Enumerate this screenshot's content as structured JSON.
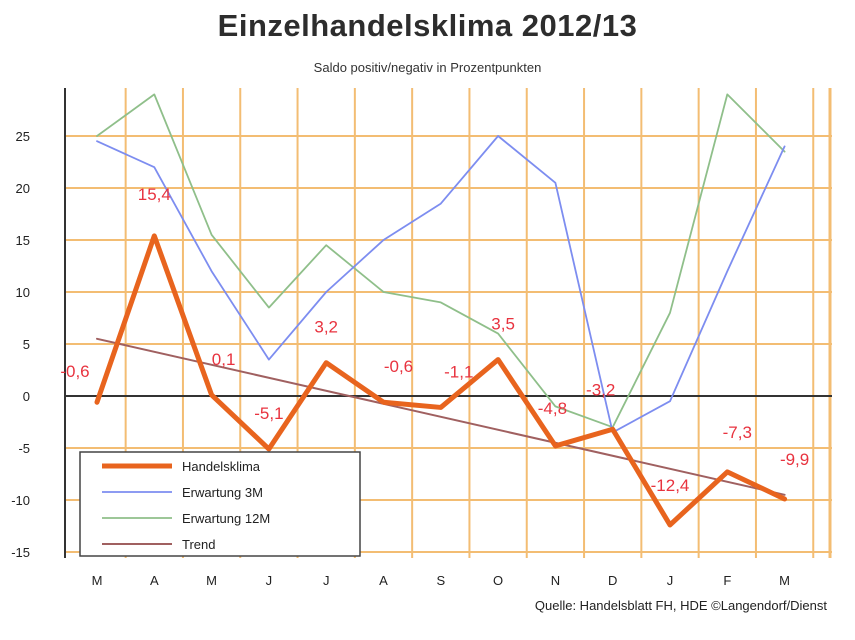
{
  "chart_data": {
    "type": "line",
    "title": "Einzelhandelsklima 2012/13",
    "subtitle": "Saldo positiv/negativ in Prozentpunkten",
    "source": "Quelle: Handelsblatt FH, HDE ©Langendorf/Dienst",
    "categories": [
      "M",
      "A",
      "M",
      "J",
      "J",
      "A",
      "S",
      "O",
      "N",
      "D",
      "J",
      "F",
      "M"
    ],
    "y_ticks": [
      25,
      20,
      15,
      10,
      5,
      0,
      -5,
      -10,
      -15
    ],
    "ylim": [
      -16,
      30
    ],
    "grid": true,
    "legend_position": "bottom-left",
    "series": [
      {
        "name": "Handelsklima",
        "color": "#e8641e",
        "values": [
          -0.6,
          15.4,
          0.1,
          -5.1,
          3.2,
          -0.6,
          -1.1,
          3.5,
          -4.8,
          -3.2,
          -12.4,
          -7.3,
          -9.9
        ],
        "labels": [
          "-0,6",
          "15,4",
          "0,1",
          "-5,1",
          "3,2",
          "-0,6",
          "-1,1",
          "3,5",
          "-4,8",
          "-3,2",
          "-12,4",
          "-7,3",
          "-9,9"
        ]
      },
      {
        "name": "Erwartung 3M",
        "color": "#7d8df0",
        "values": [
          24.5,
          22,
          12,
          3.5,
          10,
          15,
          18.5,
          25,
          20.5,
          -3.5,
          -0.5,
          12,
          24
        ]
      },
      {
        "name": "Erwartung 12M",
        "color": "#8fbf8a",
        "values": [
          25,
          29,
          15.5,
          8.5,
          14.5,
          10,
          9,
          6,
          -1,
          -3,
          8,
          29,
          23.5
        ]
      },
      {
        "name": "Trend",
        "color": "#a06060",
        "values": [
          5.5,
          4.25,
          3,
          1.75,
          0.5,
          -0.75,
          -2,
          -3.25,
          -4.5,
          -5.75,
          -7,
          -8.25,
          -9.5
        ]
      }
    ]
  }
}
